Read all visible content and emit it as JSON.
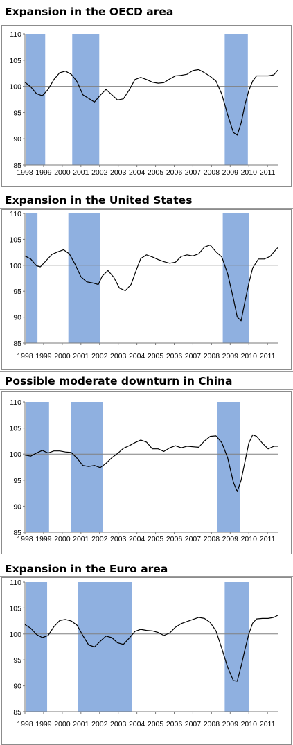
{
  "colors": {
    "recession_band": "#8fb0e0",
    "series_line": "#000000",
    "baseline": "#808080"
  },
  "chart_data": [
    {
      "type": "line",
      "title": "Expansion in the OECD area",
      "xlabel": "",
      "ylabel": "",
      "ylim": [
        85,
        110
      ],
      "xlim": [
        1998,
        2011.1
      ],
      "yticks": [
        "110",
        "105",
        "100",
        "95",
        "90",
        "85"
      ],
      "xticks": [
        "1998",
        "1999",
        "2000",
        "2001",
        "2002",
        "2003",
        "2004",
        "2005",
        "2006",
        "2007",
        "2008",
        "2009",
        "2010",
        "2011"
      ],
      "baseline": 100,
      "bands": [
        [
          1998.05,
          1999.05
        ],
        [
          2000.45,
          2001.85
        ],
        [
          2008.35,
          2009.55
        ]
      ],
      "series": [
        {
          "x": [
            1998.0,
            1998.3,
            1998.6,
            1998.9,
            1999.2,
            1999.5,
            1999.8,
            2000.1,
            2000.4,
            2000.7,
            2001.0,
            2001.3,
            2001.6,
            2001.9,
            2002.2,
            2002.5,
            2002.8,
            2003.1,
            2003.4,
            2003.7,
            2004.0,
            2004.3,
            2004.6,
            2004.9,
            2005.2,
            2005.5,
            2005.8,
            2006.1,
            2006.4,
            2006.7,
            2007.0,
            2007.3,
            2007.6,
            2007.9,
            2008.2,
            2008.5,
            2008.8,
            2009.0,
            2009.2,
            2009.4,
            2009.6,
            2009.8,
            2010.0,
            2010.3,
            2010.6,
            2010.9,
            2011.1
          ],
          "values": [
            100.8,
            99.9,
            98.6,
            98.2,
            99.4,
            101.3,
            102.6,
            102.9,
            102.3,
            100.9,
            98.4,
            97.7,
            97.0,
            98.3,
            99.4,
            98.4,
            97.4,
            97.6,
            99.3,
            101.3,
            101.7,
            101.3,
            100.8,
            100.6,
            100.7,
            101.4,
            102.0,
            102.1,
            102.3,
            103.0,
            103.2,
            102.6,
            101.9,
            101.0,
            98.5,
            94.6,
            91.2,
            90.7,
            93.0,
            96.5,
            99.2,
            101.0,
            102.0,
            102.0,
            102.0,
            102.2,
            103.1
          ]
        }
      ]
    },
    {
      "type": "line",
      "title": "Expansion in the United States",
      "xlabel": "",
      "ylabel": "",
      "ylim": [
        85,
        110
      ],
      "xlim": [
        1998,
        2011.1
      ],
      "yticks": [
        "110",
        "105",
        "100",
        "95",
        "90",
        "85"
      ],
      "xticks": [
        "1998",
        "1999",
        "2000",
        "2001",
        "2002",
        "2003",
        "2004",
        "2005",
        "2006",
        "2007",
        "2008",
        "2009",
        "2010",
        "2011"
      ],
      "baseline": 100,
      "bands": [
        [
          1998.05,
          1998.65
        ],
        [
          2000.25,
          2001.9
        ],
        [
          2008.25,
          2009.6
        ]
      ],
      "series": [
        {
          "x": [
            1998.0,
            1998.3,
            1998.6,
            1998.8,
            1999.1,
            1999.4,
            1999.7,
            2000.0,
            2000.3,
            2000.6,
            2000.9,
            2001.2,
            2001.5,
            2001.8,
            2002.0,
            2002.3,
            2002.6,
            2002.9,
            2003.2,
            2003.5,
            2003.8,
            2004.0,
            2004.3,
            2004.6,
            2004.9,
            2005.2,
            2005.5,
            2005.8,
            2006.1,
            2006.4,
            2006.7,
            2007.0,
            2007.3,
            2007.6,
            2007.9,
            2008.2,
            2008.5,
            2008.8,
            2009.0,
            2009.2,
            2009.4,
            2009.6,
            2009.8,
            2010.1,
            2010.4,
            2010.7,
            2011.0,
            2011.1
          ],
          "values": [
            101.8,
            101.2,
            99.9,
            99.7,
            100.9,
            102.1,
            102.6,
            103.0,
            102.2,
            100.2,
            97.8,
            96.8,
            96.6,
            96.3,
            97.9,
            99.0,
            97.7,
            95.6,
            95.1,
            96.3,
            99.4,
            101.3,
            102.0,
            101.6,
            101.1,
            100.7,
            100.4,
            100.6,
            101.7,
            102.0,
            101.8,
            102.2,
            103.5,
            103.9,
            102.6,
            101.6,
            98.4,
            93.6,
            90.0,
            89.3,
            93.0,
            96.5,
            99.5,
            101.2,
            101.2,
            101.7,
            103.0,
            103.4
          ]
        }
      ]
    },
    {
      "type": "line",
      "title": "Possible moderate downturn in China",
      "xlabel": "",
      "ylabel": "",
      "ylim": [
        85,
        110
      ],
      "xlim": [
        1998,
        2011.1
      ],
      "yticks": [
        "110",
        "105",
        "100",
        "95",
        "90",
        "85"
      ],
      "xticks": [
        "1998",
        "1999",
        "2000",
        "2001",
        "2002",
        "2003",
        "2004",
        "2005",
        "2006",
        "2007",
        "2008",
        "2009",
        "2010",
        "2011"
      ],
      "baseline": 100,
      "bands": [
        [
          1998.05,
          1999.25
        ],
        [
          2000.4,
          2002.05
        ],
        [
          2007.95,
          2009.15
        ]
      ],
      "series": [
        {
          "x": [
            1998.0,
            1998.3,
            1998.6,
            1998.9,
            1999.2,
            1999.5,
            1999.8,
            2000.1,
            2000.4,
            2000.7,
            2001.0,
            2001.3,
            2001.6,
            2001.9,
            2002.2,
            2002.5,
            2002.8,
            2003.1,
            2003.4,
            2003.7,
            2004.0,
            2004.3,
            2004.6,
            2004.9,
            2005.2,
            2005.5,
            2005.8,
            2006.1,
            2006.4,
            2006.7,
            2007.0,
            2007.3,
            2007.6,
            2007.9,
            2008.2,
            2008.5,
            2008.8,
            2009.0,
            2009.2,
            2009.4,
            2009.6,
            2009.8,
            2010.0,
            2010.3,
            2010.6,
            2010.9,
            2011.1
          ],
          "values": [
            99.8,
            99.6,
            100.2,
            100.7,
            100.2,
            100.6,
            100.6,
            100.4,
            100.3,
            99.2,
            97.8,
            97.6,
            97.8,
            97.4,
            98.2,
            99.3,
            100.1,
            101.1,
            101.6,
            102.2,
            102.7,
            102.3,
            101.0,
            101.0,
            100.5,
            101.2,
            101.6,
            101.2,
            101.5,
            101.4,
            101.3,
            102.5,
            103.4,
            103.5,
            102.2,
            99.3,
            94.6,
            92.8,
            95.0,
            98.5,
            102.1,
            103.7,
            103.4,
            102.1,
            101.0,
            101.5,
            101.5
          ]
        }
      ]
    },
    {
      "type": "line",
      "title": "Expansion in the Euro area",
      "xlabel": "",
      "ylabel": "",
      "ylim": [
        85,
        110
      ],
      "xlim": [
        1998,
        2011.1
      ],
      "yticks": [
        "110",
        "105",
        "100",
        "95",
        "90",
        "85"
      ],
      "xticks": [
        "1998",
        "1999",
        "2000",
        "2001",
        "2002",
        "2003",
        "2004",
        "2005",
        "2006",
        "2007",
        "2008",
        "2009",
        "2010",
        "2011"
      ],
      "baseline": 100,
      "bands": [
        [
          1998.05,
          1999.15
        ],
        [
          2000.75,
          2003.55
        ],
        [
          2008.35,
          2009.6
        ]
      ],
      "series": [
        {
          "x": [
            1998.0,
            1998.3,
            1998.6,
            1998.9,
            1999.2,
            1999.5,
            1999.8,
            2000.1,
            2000.4,
            2000.7,
            2001.0,
            2001.3,
            2001.6,
            2001.9,
            2002.2,
            2002.5,
            2002.8,
            2003.1,
            2003.4,
            2003.7,
            2004.0,
            2004.3,
            2004.6,
            2004.9,
            2005.2,
            2005.5,
            2005.8,
            2006.1,
            2006.4,
            2006.7,
            2007.0,
            2007.3,
            2007.6,
            2007.9,
            2008.2,
            2008.5,
            2008.8,
            2009.0,
            2009.2,
            2009.4,
            2009.6,
            2009.8,
            2010.0,
            2010.3,
            2010.6,
            2010.9,
            2011.1
          ],
          "values": [
            101.8,
            101.1,
            99.9,
            99.3,
            99.7,
            101.4,
            102.6,
            102.8,
            102.5,
            101.7,
            99.7,
            97.9,
            97.5,
            98.6,
            99.6,
            99.3,
            98.3,
            98.0,
            99.2,
            100.5,
            100.9,
            100.7,
            100.6,
            100.3,
            99.7,
            100.2,
            101.3,
            102.0,
            102.4,
            102.8,
            103.2,
            103.0,
            102.2,
            100.6,
            97.2,
            93.6,
            91.0,
            90.9,
            93.8,
            97.0,
            100.0,
            102.1,
            102.9,
            103.0,
            103.0,
            103.2,
            103.6
          ]
        }
      ]
    }
  ]
}
